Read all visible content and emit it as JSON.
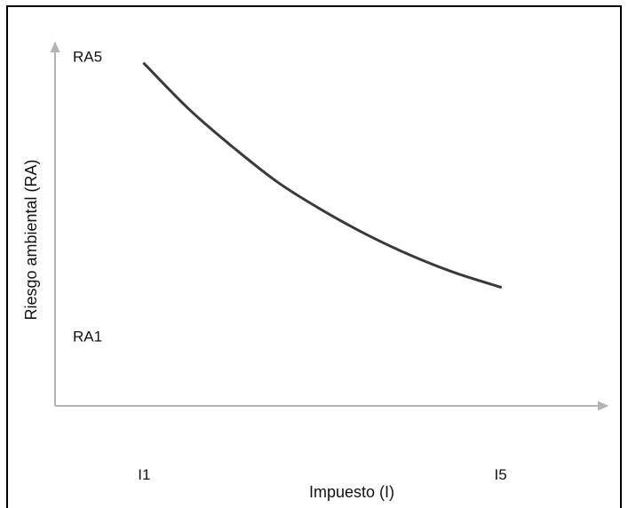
{
  "chart_data": {
    "type": "line",
    "xlabel": "Impuesto (I)",
    "ylabel": "Riesgo ambiental (RA)",
    "x_ticks": [
      {
        "label": "I1",
        "value": 1
      },
      {
        "label": "I5",
        "value": 5
      }
    ],
    "y_ticks": [
      {
        "label": "RA1",
        "value": 1
      },
      {
        "label": "RA5",
        "value": 5
      }
    ],
    "xlim": [
      0,
      6.2
    ],
    "ylim": [
      0,
      5.2
    ],
    "series": [
      {
        "x": [
          1.0,
          1.5,
          2.0,
          2.5,
          3.0,
          3.5,
          4.0,
          4.5,
          5.0
        ],
        "y": [
          4.9,
          4.25,
          3.7,
          3.2,
          2.8,
          2.45,
          2.15,
          1.9,
          1.7
        ]
      }
    ],
    "grid": false,
    "legend": "none",
    "colors": {
      "axis": "#b3b3b3",
      "line": "#3a3a3a"
    }
  }
}
